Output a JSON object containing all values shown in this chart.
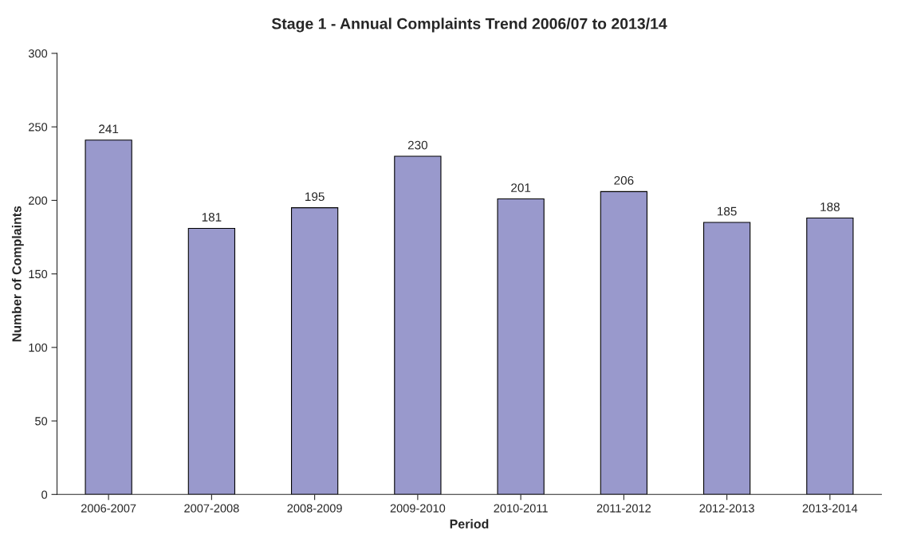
{
  "chart_data": {
    "type": "bar",
    "title": "Stage 1 - Annual Complaints Trend 2006/07 to 2013/14",
    "xlabel": "Period",
    "ylabel": "Number of Complaints",
    "categories": [
      "2006-2007",
      "2007-2008",
      "2008-2009",
      "2009-2010",
      "2010-2011",
      "2011-2012",
      "2012-2013",
      "2013-2014"
    ],
    "values": [
      241,
      181,
      195,
      230,
      201,
      206,
      185,
      188
    ],
    "color": "#9999cc",
    "ylim": [
      0,
      300
    ],
    "yticks": [
      0,
      50,
      100,
      150,
      200,
      250,
      300
    ],
    "grid": false,
    "data_labels": true
  }
}
